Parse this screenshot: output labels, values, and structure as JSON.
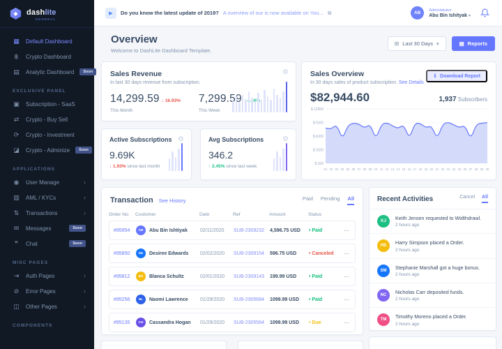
{
  "colors": {
    "primary": "#6576ff",
    "green": "#19c188",
    "red": "#e85347",
    "orange": "#f4bd0e",
    "sidebar_bg": "#101924"
  },
  "sidebar": {
    "logo": {
      "brand_bold": "dash",
      "brand_light": "lite",
      "subtitle": "GENERAL"
    },
    "sections": [
      {
        "heading": "",
        "items": [
          {
            "label": "Default Dashboard",
            "icon": "dashboard-icon",
            "active": true
          },
          {
            "label": "Crypto Dashboard",
            "icon": "crypto-icon"
          },
          {
            "label": "Analytic Dashboard",
            "icon": "analytics-icon",
            "badge": "Soon"
          }
        ]
      },
      {
        "heading": "EXCLUSIVE PANEL",
        "items": [
          {
            "label": "Subscription - SaaS",
            "icon": "subscription-icon"
          },
          {
            "label": "Crypto - Buy Sell",
            "icon": "buysell-icon"
          },
          {
            "label": "Crypto - Investment",
            "icon": "investment-icon"
          },
          {
            "label": "Crypto - Adminize",
            "icon": "adminize-icon",
            "badge": "Soon"
          }
        ]
      },
      {
        "heading": "APPLICATIONS",
        "items": [
          {
            "label": "User Manage",
            "icon": "users-icon",
            "chevron": true
          },
          {
            "label": "AML / KYCs",
            "icon": "aml-icon",
            "chevron": true
          },
          {
            "label": "Transactions",
            "icon": "tranx-icon",
            "chevron": true
          },
          {
            "label": "Messages",
            "icon": "messages-icon",
            "badge": "Soon"
          },
          {
            "label": "Chat",
            "icon": "chat-icon",
            "badge": "Soon"
          }
        ]
      },
      {
        "heading": "MISC PAGES",
        "items": [
          {
            "label": "Auth Pages",
            "icon": "auth-icon",
            "chevron": true
          },
          {
            "label": "Error Pages",
            "icon": "error-icon",
            "chevron": true
          },
          {
            "label": "Other Pages",
            "icon": "pages-icon",
            "chevron": true
          }
        ]
      },
      {
        "heading": "COMPONENTS",
        "items": []
      }
    ]
  },
  "topbar": {
    "notice_bold": "Do you know the latest update of 2019?",
    "notice_link": "A overview of our is now available on You...",
    "user_role": "Administrator",
    "user_name": "Abu Bin Ishityak",
    "avatar_initials": "AB"
  },
  "page_header": {
    "title": "Overview",
    "subtitle": "Welcome to DashLite Dashboard Template.",
    "range_button": "Last 30 Days",
    "reports_button": "Reports"
  },
  "sales_revenue": {
    "title": "Sales Revenue",
    "subtitle": "In last 30 days revenue from subscription.",
    "month": {
      "value": "14,299.59",
      "delta_text": "↓ 16.93%",
      "delta_color": "#e85347",
      "label": "This Month"
    },
    "week": {
      "value": "7,299.59",
      "delta_text": "↑ 4.26%",
      "delta_color": "#19c188",
      "label": "This Week"
    },
    "chart_data": {
      "type": "bar",
      "values": [
        35,
        50,
        30,
        55,
        40,
        65,
        45,
        35,
        60,
        40,
        70,
        50,
        40,
        75,
        55,
        45,
        65,
        95
      ],
      "bar_color": "#dfe3fb",
      "highlight_color": "#5664e8"
    }
  },
  "sales_overview": {
    "title": "Sales Overview",
    "subtitle": "In 30 days sales of product subscription. ",
    "details_link": "See Details",
    "download_button": "Download Report",
    "amount": "$82,944.60",
    "subscribers_value": "1,937",
    "subscribers_label": "Subscribers",
    "chart_data": {
      "type": "area",
      "title": "Sales Overview (30 days)",
      "ylim": [
        100,
        12000
      ],
      "ytick_labels": [
        "$ 12000",
        "$ 9100",
        "$ 6100",
        "$ 3100",
        "$ 100"
      ],
      "x": [
        "01",
        "02",
        "03",
        "04",
        "05",
        "06",
        "07",
        "08",
        "09",
        "10",
        "11",
        "12",
        "13",
        "14",
        "15",
        "16",
        "17",
        "18",
        "19",
        "20",
        "21",
        "22",
        "23",
        "24",
        "25",
        "26",
        "27",
        "28",
        "29",
        "30"
      ],
      "values": [
        7800,
        7600,
        8600,
        5300,
        8400,
        8900,
        8700,
        7800,
        8700,
        5300,
        8600,
        9000,
        8300,
        7700,
        8600,
        5400,
        8900,
        8800,
        7900,
        8300,
        5400,
        8700,
        9100,
        8500,
        7900,
        8400,
        5300,
        8600,
        8900,
        9000
      ],
      "line_color": "#6576ff",
      "fill_color": "#ccd3f8"
    }
  },
  "active_subscriptions": {
    "title": "Active Subscriptions",
    "value": "9.69K",
    "delta_text": "↓ 1.93%",
    "delta_color": "#e85347",
    "note": "since last month",
    "chart_data": {
      "type": "bar",
      "values": [
        45,
        70,
        50,
        80,
        100
      ],
      "bar_color": "#dfe3fb",
      "highlight_color": "#6576ff"
    }
  },
  "avg_subscriptions": {
    "title": "Avg Subscriptions",
    "value": "346.2",
    "delta_text": "↑ 2.45%",
    "delta_color": "#19c188",
    "note": "since last week",
    "chart_data": {
      "type": "bar",
      "values": [
        45,
        70,
        50,
        80,
        100
      ],
      "bar_color": "#dfe3fb",
      "highlight_color": "#8166f2"
    }
  },
  "transactions": {
    "title": "Transaction",
    "history_link": "See History",
    "tabs": [
      "Paid",
      "Pending",
      "All"
    ],
    "active_tab": "All",
    "columns": [
      "Order No.",
      "Customer",
      "Date",
      "Ref",
      "Amount",
      "Status"
    ],
    "rows": [
      {
        "order": "#95954",
        "initials": "AB",
        "avatar_color": "#6576ff",
        "customer": "Abu Bin Ishtiyak",
        "date": "02/11/2020",
        "ref": "SUB-2309232",
        "amount": "4,596.75 USD",
        "status": "Paid",
        "status_color": "#0fbe7c"
      },
      {
        "order": "#95850",
        "initials": "DE",
        "avatar_color": "#1676fb",
        "customer": "Desiree Edwards",
        "date": "02/02/2020",
        "ref": "SUB-2309154",
        "amount": "596.75 USD",
        "status": "Canceled",
        "status_color": "#e85347"
      },
      {
        "order": "#95812",
        "initials": "BS",
        "avatar_color": "#f4bd0e",
        "customer": "Blanca Schultz",
        "date": "02/01/2020",
        "ref": "SUB-2309143",
        "amount": "199.99 USD",
        "status": "Paid",
        "status_color": "#0fbe7c"
      },
      {
        "order": "#95256",
        "initials": "NL",
        "avatar_color": "#2c60e8",
        "customer": "Naomi Lawrence",
        "date": "01/29/2020",
        "ref": "SUB-2305684",
        "amount": "1099.99 USD",
        "status": "Paid",
        "status_color": "#0fbe7c"
      },
      {
        "order": "#95135",
        "initials": "CH",
        "avatar_color": "#6950e8",
        "customer": "Cassandra Hogan",
        "date": "01/29/2020",
        "ref": "SUB-2305564",
        "amount": "1099.99 USD",
        "status": "Due",
        "status_color": "#f4bd0e"
      }
    ]
  },
  "activities": {
    "title": "Recent Activities",
    "tabs": [
      "Cancel",
      "All"
    ],
    "active_tab": "All",
    "items": [
      {
        "initials": "KJ",
        "avatar_color": "#1dbf83",
        "text": "Keith Jensen requested to Widthdrawl.",
        "time": "2 hours ago"
      },
      {
        "initials": "HS",
        "avatar_color": "#f4bd0e",
        "text": "Harry Simpson placed a Order.",
        "time": "2 hours ago"
      },
      {
        "initials": "SM",
        "avatar_color": "#1676fb",
        "text": "Stephanie Marshall got a huge bonus.",
        "time": "2 hours ago"
      },
      {
        "initials": "NC",
        "avatar_color": "#8166f2",
        "text": "Nicholas Carr deposited funds.",
        "time": "2 hours ago"
      },
      {
        "initials": "TM",
        "avatar_color": "#f04f86",
        "text": "Timothy Moreno placed a Order.",
        "time": "2 hours ago"
      }
    ]
  }
}
